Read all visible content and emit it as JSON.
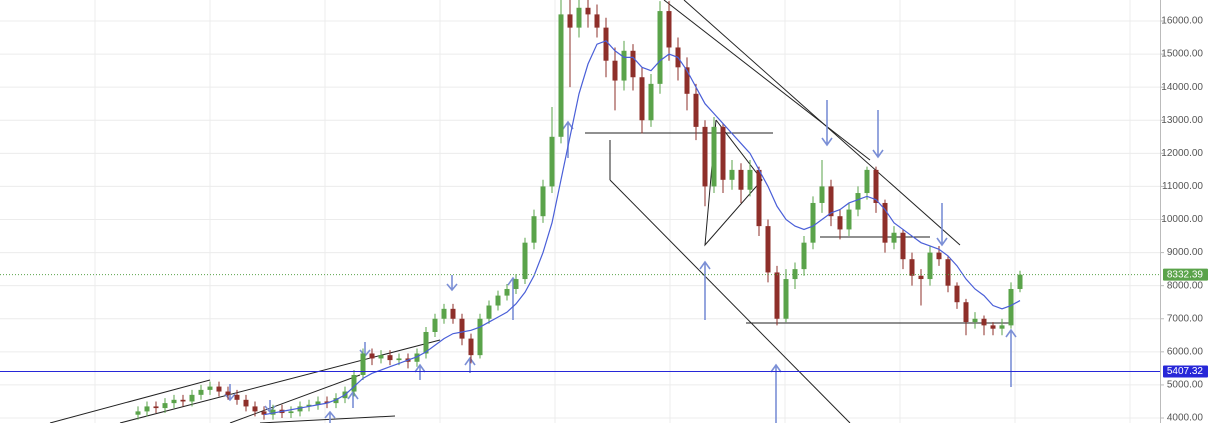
{
  "chart_data": {
    "type": "candlestick",
    "ylim": [
      3849,
      16635
    ],
    "yticks": [
      {
        "value": 4000,
        "label": "4000.00"
      },
      {
        "value": 5000,
        "label": "5000.00"
      },
      {
        "value": 6000,
        "label": "6000.00"
      },
      {
        "value": 7000,
        "label": "7000.00"
      },
      {
        "value": 8000,
        "label": "8000.00"
      },
      {
        "value": 9000,
        "label": "9000.00"
      },
      {
        "value": 10000,
        "label": "10000.00"
      },
      {
        "value": 11000,
        "label": "11000.00"
      },
      {
        "value": 12000,
        "label": "12000.00"
      },
      {
        "value": 13000,
        "label": "13000.00"
      },
      {
        "value": 14000,
        "label": "14000.00"
      },
      {
        "value": 15000,
        "label": "15000.00"
      },
      {
        "value": 16000,
        "label": "16000.00"
      }
    ],
    "grid": true,
    "up_color": "#5aa34a",
    "down_color": "#8e2f2a",
    "open": [
      4100,
      4200,
      4350,
      4300,
      4450,
      4550,
      4500,
      4700,
      4850,
      4950,
      4800,
      4700,
      4550,
      4350,
      4200,
      4100,
      4250,
      4150,
      4200,
      4350,
      4400,
      4500,
      4450,
      4600,
      4800,
      5300,
      5950,
      5800,
      5900,
      5750,
      5800,
      5700,
      5950,
      6600,
      7000,
      7300,
      7000,
      6400,
      5900,
      7000,
      7400,
      7700,
      7900,
      8200,
      9300,
      10100,
      11000,
      12500,
      16200,
      15800,
      16400,
      16200,
      15800,
      14800,
      14200,
      15100,
      14300,
      13000,
      14100,
      16300,
      15200,
      14600,
      13800,
      12800,
      11000,
      12800,
      11200,
      11500,
      10900,
      11500,
      9800,
      8400,
      7000,
      8200,
      8500,
      9300,
      10500,
      11000,
      10100,
      9700,
      10300,
      10800,
      11500,
      10500,
      9300,
      9600,
      8800,
      8300,
      8200,
      9000,
      8800,
      8000,
      7500,
      6900,
      7000,
      6800,
      6700,
      6800,
      7900
    ],
    "high": [
      4350,
      4500,
      4500,
      4600,
      4700,
      4700,
      4850,
      5000,
      5100,
      5100,
      4950,
      4850,
      4700,
      4500,
      4350,
      4400,
      4400,
      4350,
      4500,
      4550,
      4650,
      4650,
      4750,
      4950,
      5450,
      6100,
      6100,
      6050,
      6050,
      5950,
      5950,
      6100,
      6750,
      7150,
      7450,
      7450,
      7150,
      6550,
      7150,
      7550,
      7850,
      8050,
      8350,
      9450,
      10300,
      11200,
      13400,
      17000,
      16700,
      16700,
      16700,
      16500,
      16100,
      15200,
      15400,
      15300,
      14600,
      14400,
      16600,
      16600,
      15500,
      14900,
      14100,
      13000,
      13100,
      12900,
      11800,
      11700,
      11800,
      11600,
      10000,
      8600,
      8500,
      8700,
      9500,
      10700,
      11800,
      11200,
      10300,
      10500,
      11000,
      11600,
      11600,
      10600,
      9800,
      9700,
      9000,
      8500,
      9200,
      9200,
      8900,
      8100,
      7600,
      7200,
      7100,
      6900,
      7000,
      8100,
      8450
    ],
    "low": [
      3950,
      4050,
      4150,
      4150,
      4300,
      4350,
      4350,
      4550,
      4700,
      4650,
      4550,
      4400,
      4200,
      4050,
      3950,
      3950,
      4000,
      4000,
      4050,
      4200,
      4250,
      4300,
      4300,
      4450,
      4650,
      5150,
      5600,
      5650,
      5600,
      5600,
      5500,
      5550,
      5800,
      6450,
      6850,
      6850,
      6200,
      5650,
      5800,
      6850,
      7250,
      7550,
      7750,
      8050,
      9100,
      9900,
      10800,
      12300,
      14000,
      15500,
      15800,
      15500,
      14300,
      13300,
      13900,
      13900,
      12600,
      12800,
      13800,
      14800,
      14200,
      13300,
      12400,
      10400,
      10800,
      10800,
      10900,
      10500,
      10700,
      9500,
      8100,
      6800,
      6900,
      7900,
      8300,
      9100,
      10200,
      9800,
      9400,
      9500,
      10100,
      10600,
      10200,
      9000,
      9100,
      8500,
      8000,
      7400,
      8000,
      8600,
      7800,
      7300,
      6500,
      6700,
      6500,
      6500,
      6500,
      6700,
      7800
    ],
    "close": [
      4200,
      4350,
      4300,
      4450,
      4550,
      4500,
      4700,
      4850,
      4950,
      4800,
      4700,
      4550,
      4350,
      4200,
      4100,
      4250,
      4150,
      4200,
      4350,
      4400,
      4500,
      4450,
      4600,
      4800,
      5300,
      5950,
      5800,
      5900,
      5750,
      5800,
      5700,
      5950,
      6600,
      7000,
      7300,
      7000,
      6400,
      5900,
      7000,
      7400,
      7700,
      7900,
      8200,
      9300,
      10100,
      11000,
      12500,
      16200,
      15800,
      16400,
      16200,
      15800,
      14800,
      14200,
      15100,
      14300,
      13000,
      14100,
      16300,
      15200,
      14600,
      13800,
      12800,
      11000,
      12800,
      11200,
      11500,
      10900,
      11500,
      9800,
      8400,
      7000,
      8200,
      8500,
      9300,
      10500,
      11000,
      10100,
      9700,
      10300,
      10800,
      11500,
      10500,
      9300,
      9600,
      8800,
      8300,
      8200,
      9000,
      8800,
      8000,
      7500,
      6900,
      7000,
      6800,
      6700,
      6800,
      7900,
      8332.39
    ],
    "moving_average": {
      "color": "#4a5fd8",
      "values": [
        null,
        null,
        null,
        null,
        null,
        null,
        null,
        null,
        null,
        null,
        null,
        null,
        null,
        null,
        4100,
        4150,
        4200,
        4250,
        4300,
        4350,
        4400,
        4450,
        4550,
        4700,
        4950,
        5200,
        5350,
        5450,
        5550,
        5650,
        5750,
        5850,
        6000,
        6200,
        6400,
        6550,
        6600,
        6650,
        6750,
        6900,
        7050,
        7200,
        7450,
        7800,
        8300,
        9000,
        9900,
        11200,
        12500,
        13800,
        14700,
        15300,
        15400,
        15100,
        14900,
        14900,
        14600,
        14500,
        14800,
        15000,
        14900,
        14500,
        14000,
        13500,
        13200,
        12900,
        12600,
        12300,
        12000,
        11500,
        11000,
        10400,
        10000,
        9800,
        9700,
        9800,
        10000,
        10200,
        10300,
        10500,
        10600,
        10700,
        10600,
        10300,
        9900,
        9700,
        9500,
        9300,
        9200,
        9100,
        8900,
        8600,
        8200,
        7900,
        7700,
        7400,
        7300,
        7400,
        7550
      ]
    },
    "price_lines": [
      {
        "value": 8332.39,
        "color": "#5aa34a",
        "style": "dotted"
      },
      {
        "value": 5407.32,
        "color": "#2727d8",
        "style": "solid"
      }
    ]
  }
}
